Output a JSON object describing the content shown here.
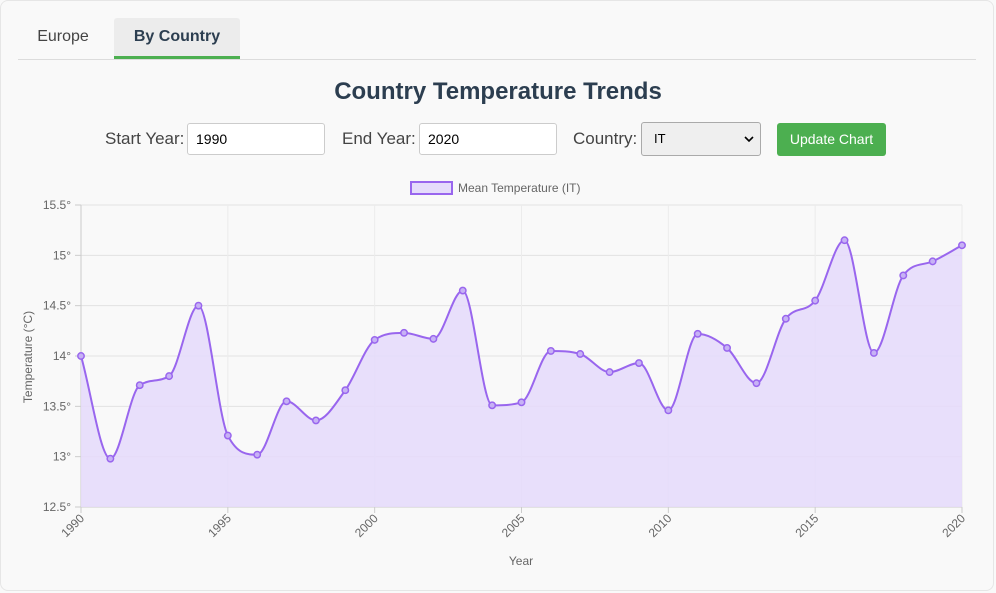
{
  "tabs": [
    {
      "label": "Europe"
    },
    {
      "label": "By Country"
    }
  ],
  "page_title": "Country Temperature Trends",
  "controls": {
    "start_label": "Start Year:",
    "start_value": "1990",
    "end_label": "End Year:",
    "end_value": "2020",
    "country_label": "Country:",
    "country_value": "IT",
    "update_label": "Update Chart"
  },
  "colors": {
    "accent": "#4caf50",
    "line": "#9966ee",
    "fill": "#e5dcfb"
  },
  "chart_data": {
    "type": "area",
    "legend": "Mean Temperature (IT)",
    "legend_position": "top",
    "xlabel": "Year",
    "ylabel": "Temperature (°C)",
    "x": [
      1990,
      1991,
      1992,
      1993,
      1994,
      1995,
      1996,
      1997,
      1998,
      1999,
      2000,
      2001,
      2002,
      2003,
      2004,
      2005,
      2006,
      2007,
      2008,
      2009,
      2010,
      2011,
      2012,
      2013,
      2014,
      2015,
      2016,
      2017,
      2018,
      2019,
      2020
    ],
    "values": [
      14.0,
      12.98,
      13.71,
      13.8,
      14.5,
      13.21,
      13.02,
      13.55,
      13.36,
      13.66,
      14.16,
      14.23,
      14.17,
      14.65,
      13.51,
      13.54,
      14.05,
      14.02,
      13.84,
      13.93,
      13.46,
      14.22,
      14.08,
      13.73,
      14.37,
      14.55,
      15.15,
      14.03,
      14.8,
      14.94,
      15.1
    ],
    "ylim": [
      12.5,
      15.5
    ],
    "yticks": [
      "12.5°",
      "13°",
      "13.5°",
      "14°",
      "14.5°",
      "15°",
      "15.5°"
    ],
    "xticks": [
      "1990",
      "1995",
      "2000",
      "2005",
      "2010",
      "2015",
      "2020"
    ],
    "grid": true
  }
}
